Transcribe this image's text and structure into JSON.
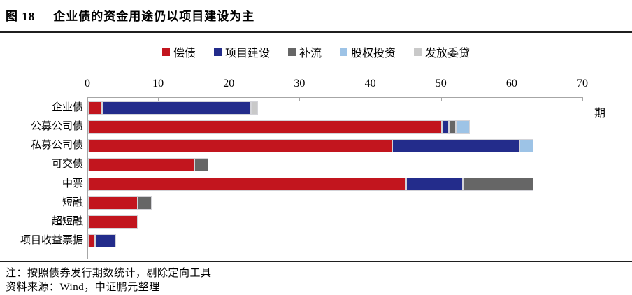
{
  "header": {
    "figure_label": "图 18",
    "title": "企业债的资金用途仍以项目建设为主"
  },
  "notes": {
    "line1": "注：按照债券发行期数统计，剔除定向工具",
    "line2": "资料来源：Wind，中证鹏元整理"
  },
  "colors": {
    "rule": "#1f1f1f",
    "axis": "#a6a6a6"
  },
  "chart_data": {
    "type": "bar",
    "orientation": "horizontal",
    "title": "企业债的资金用途仍以项目建设为主",
    "unit_label": "期",
    "xlim": [
      0,
      70
    ],
    "xticks": [
      0,
      10,
      20,
      30,
      40,
      50,
      60,
      70
    ],
    "legend_position": "top-center",
    "grid": false,
    "categories": [
      "企业债",
      "公募公司债",
      "私募公司债",
      "可交债",
      "中票",
      "短融",
      "超短融",
      "项目收益票据"
    ],
    "series": [
      {
        "name": "偿债",
        "color": "#c2151e",
        "values": [
          2,
          50,
          43,
          15,
          45,
          7,
          7,
          1
        ]
      },
      {
        "name": "项目建设",
        "color": "#232c8b",
        "values": [
          21,
          1,
          18,
          0,
          8,
          0,
          0,
          3
        ]
      },
      {
        "name": "补流",
        "color": "#666666",
        "values": [
          0,
          1,
          0,
          2,
          10,
          2,
          0,
          0
        ]
      },
      {
        "name": "股权投资",
        "color": "#9dc3e6",
        "values": [
          0,
          2,
          2,
          0,
          0,
          0,
          0,
          0
        ]
      },
      {
        "name": "发放委贷",
        "color": "#c9c9c9",
        "values": [
          1,
          0,
          0,
          0,
          0,
          0,
          0,
          0
        ]
      }
    ]
  }
}
